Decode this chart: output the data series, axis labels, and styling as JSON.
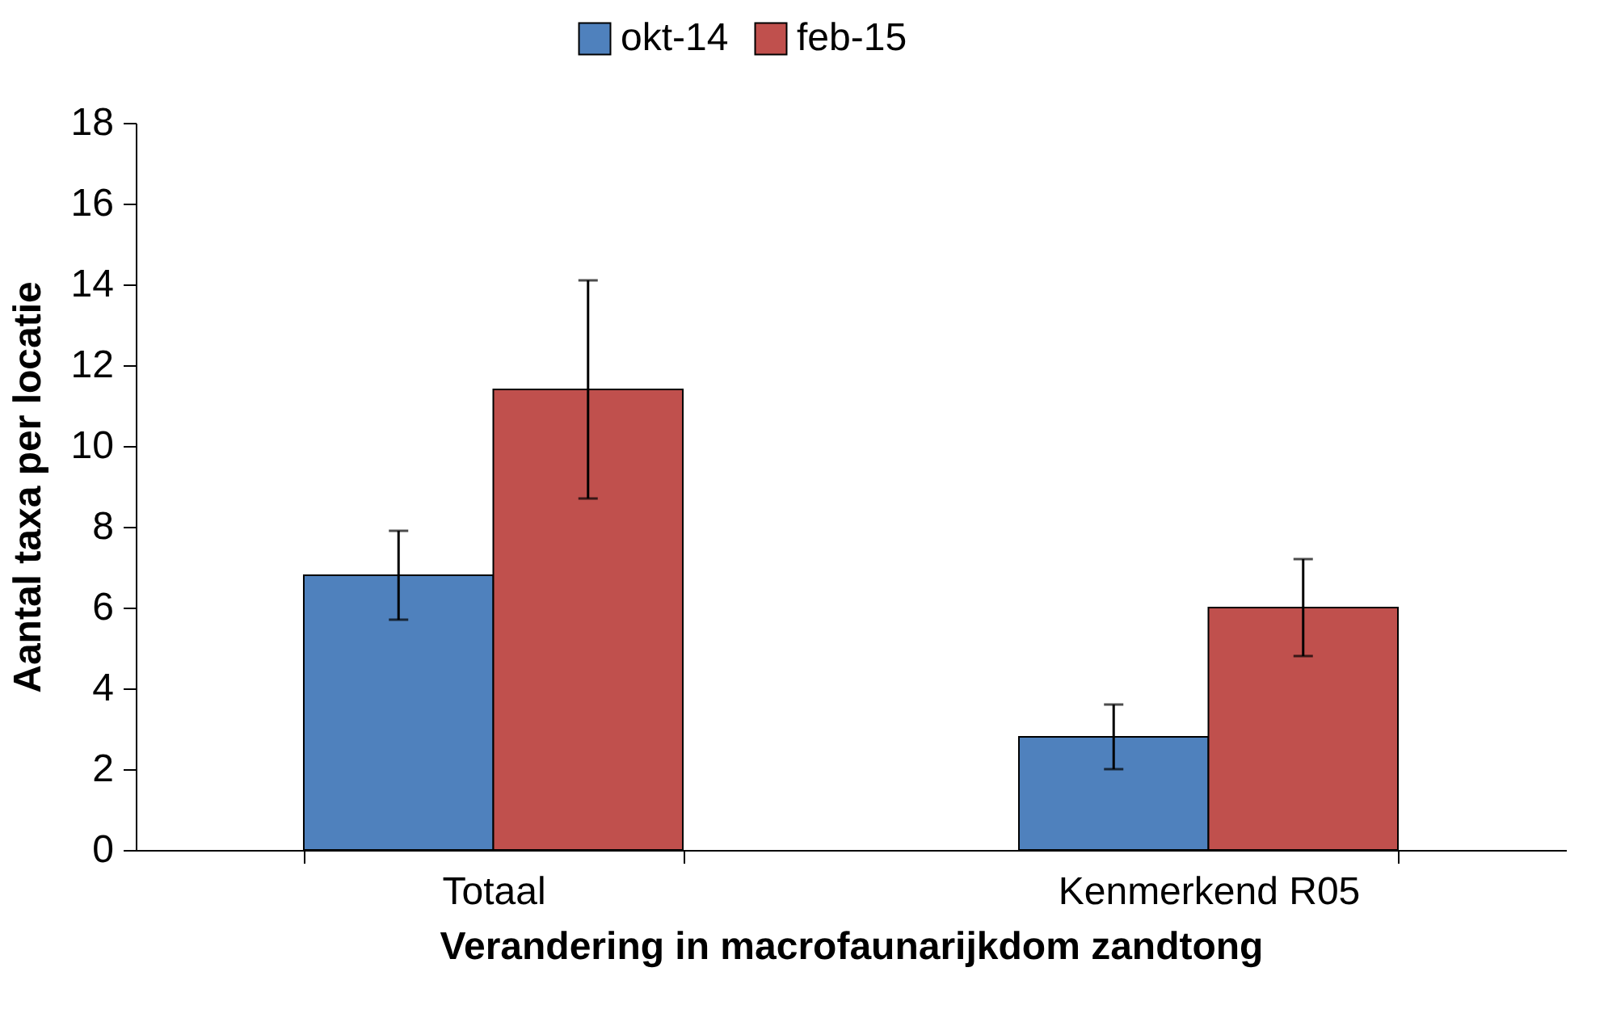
{
  "chart_data": {
    "type": "bar",
    "xlabel": "Verandering in macrofaunarijkdom zandtong",
    "ylabel": "Aantal taxa per locatie",
    "categories": [
      "Totaal",
      "Kenmerkend R05"
    ],
    "series": [
      {
        "name": "okt-14",
        "color": "#4f81bd",
        "values": [
          6.8,
          2.8
        ],
        "errors": [
          1.1,
          0.8
        ]
      },
      {
        "name": "feb-15",
        "color": "#c0504d",
        "values": [
          11.4,
          6.0
        ],
        "errors": [
          2.7,
          1.2
        ]
      }
    ],
    "ylim": [
      0,
      18
    ],
    "yticks": [
      0,
      2,
      4,
      6,
      8,
      10,
      12,
      14,
      16,
      18
    ],
    "grid": false,
    "legend": "top"
  }
}
